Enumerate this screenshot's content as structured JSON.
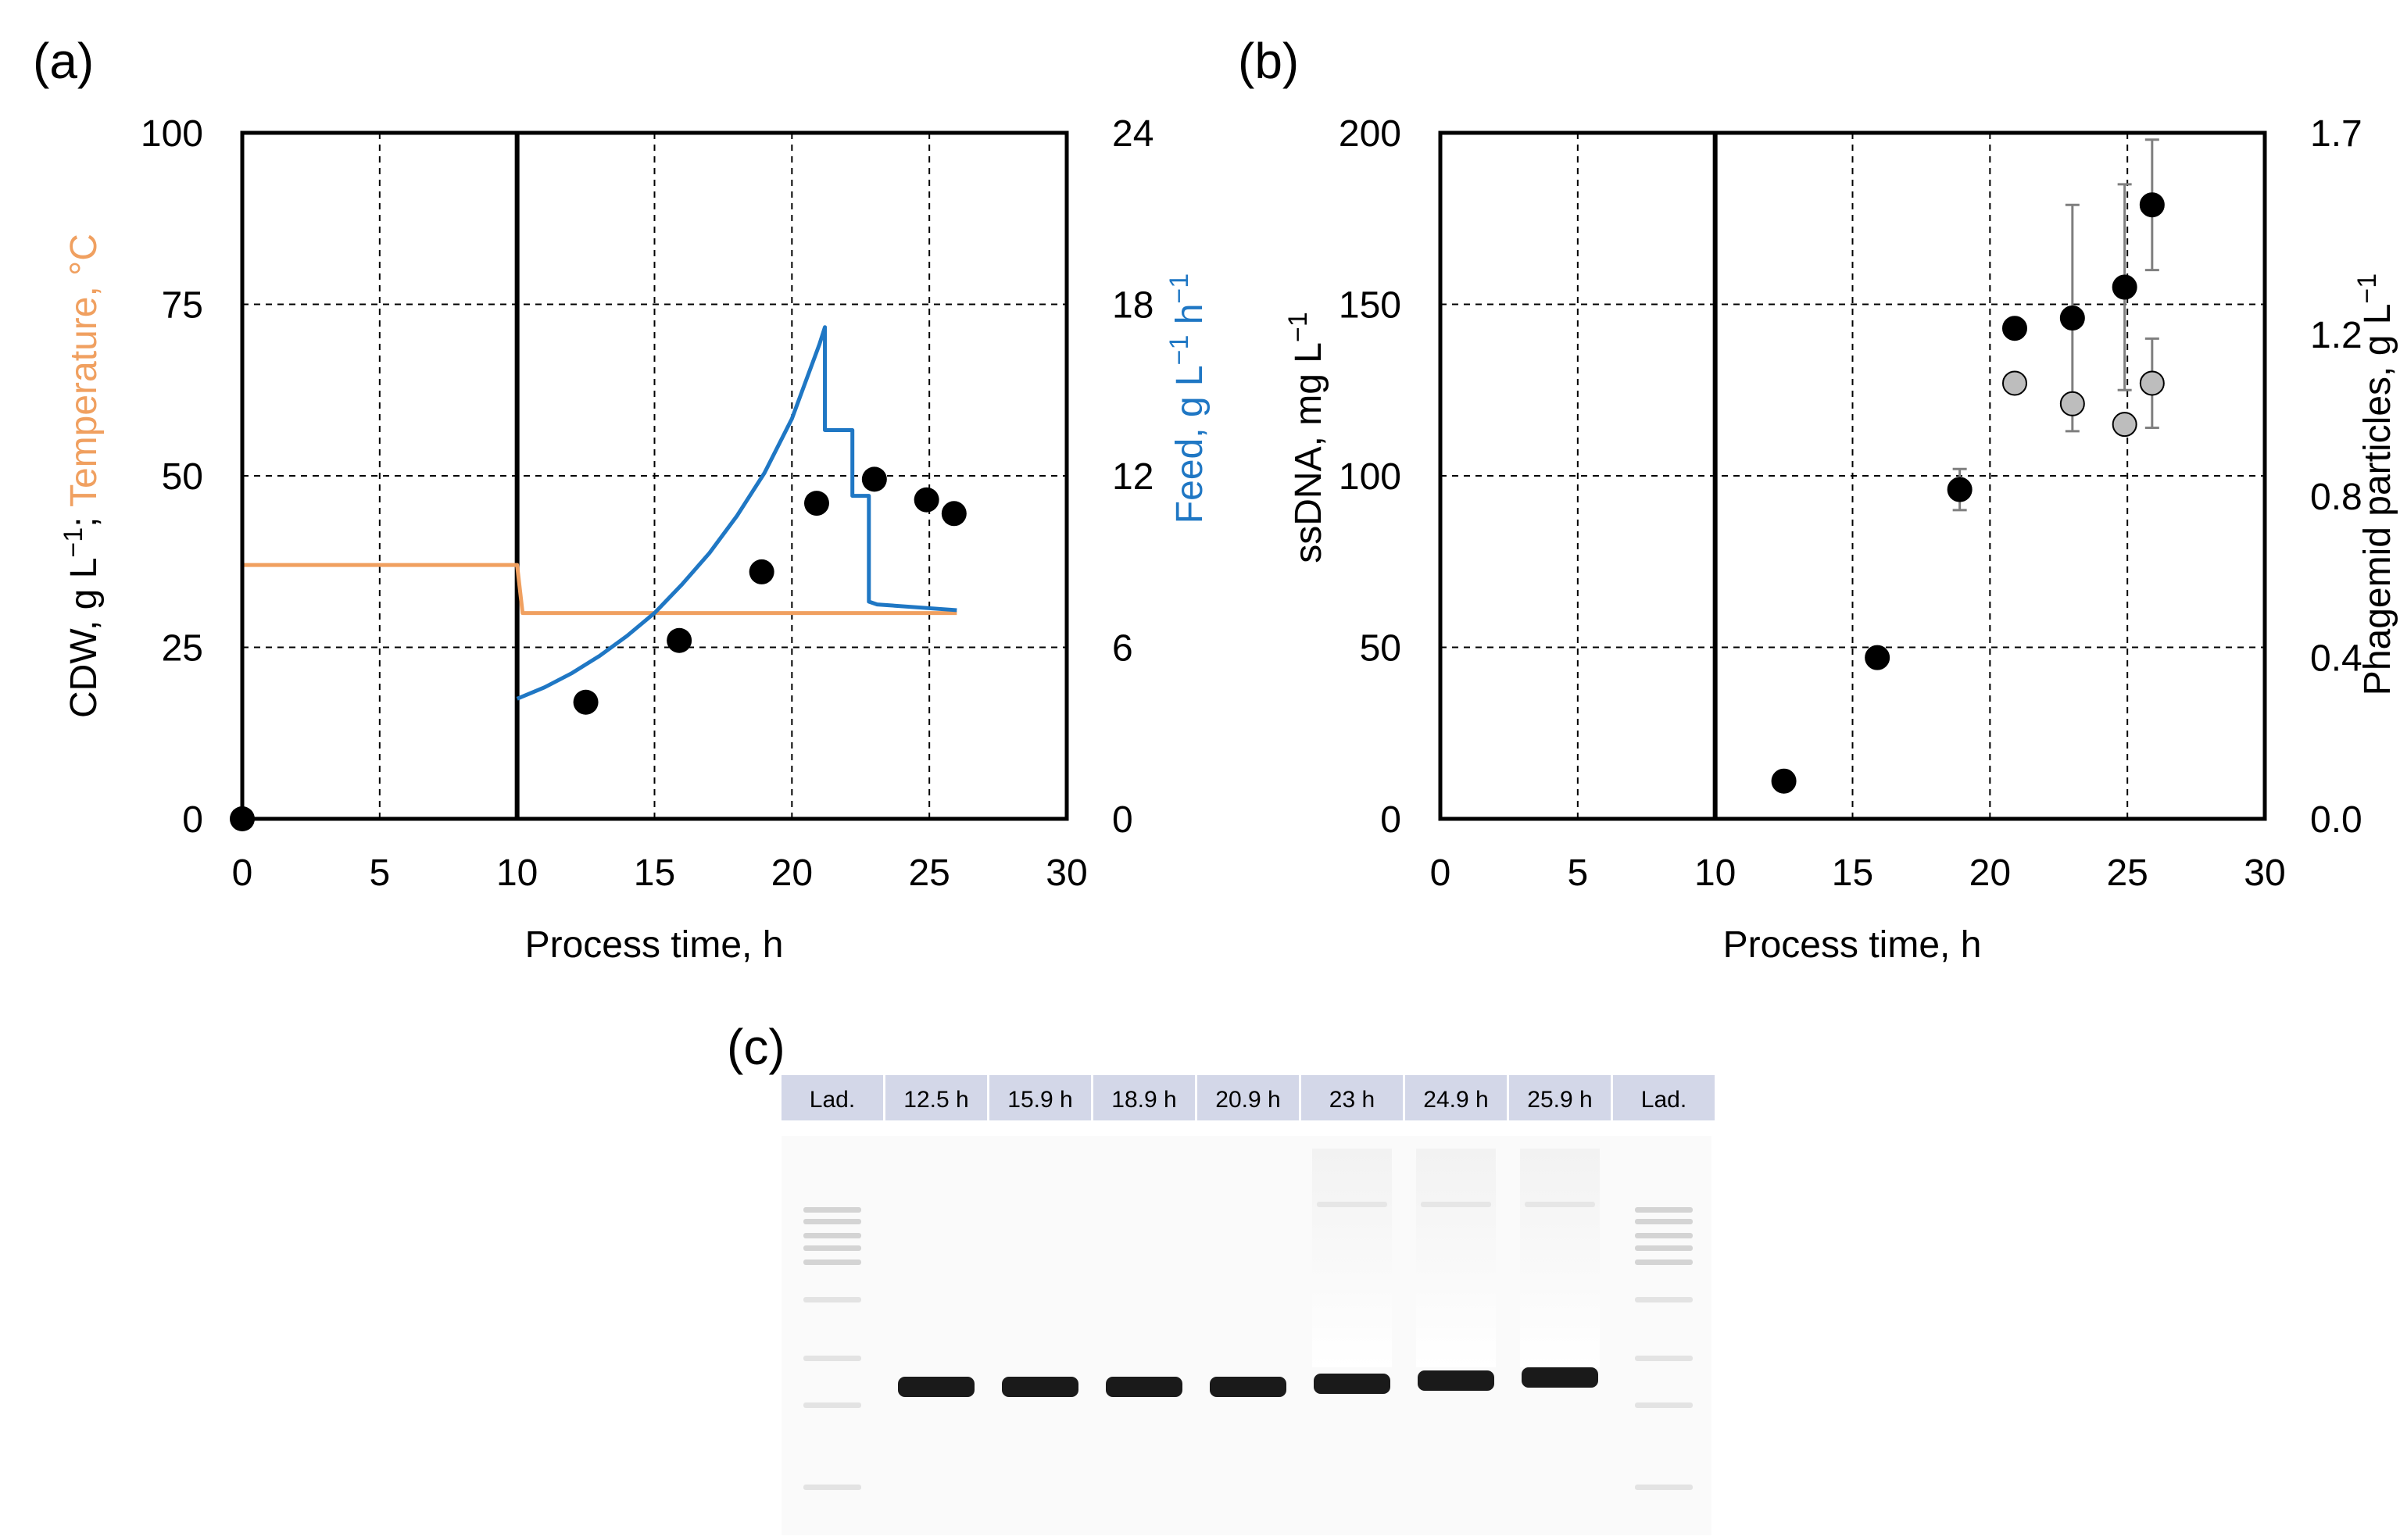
{
  "chart_data": [
    {
      "panel": "(a)",
      "type": "line",
      "xlabel": "Process time, h",
      "xlim": [
        0,
        30
      ],
      "xticks": [
        0,
        5,
        10,
        15,
        20,
        25,
        30
      ],
      "ylabel_left_parts": [
        "CDW, g L",
        "−1",
        "; ",
        "Temperature, °C"
      ],
      "ylim_left": [
        0,
        100
      ],
      "yticks_left": [
        0,
        25,
        50,
        75,
        100
      ],
      "ylabel_right_parts": [
        "Feed, g L",
        "−1",
        " h",
        "−1"
      ],
      "ylim_right": [
        0,
        24
      ],
      "yticks_right": [
        0,
        6,
        12,
        18,
        24
      ],
      "vertical_line_x": 10,
      "grid": true,
      "colors": {
        "temperature": "#F0A060",
        "feed": "#1F77C4",
        "cdw": "#000000"
      },
      "series": [
        {
          "name": "Temperature",
          "axis": "left",
          "style": "line",
          "x": [
            0,
            10,
            10.2,
            26
          ],
          "y": [
            37,
            37,
            30,
            30
          ]
        },
        {
          "name": "Feed",
          "axis": "right",
          "style": "line",
          "x": [
            10,
            11,
            12,
            13,
            14,
            15,
            16,
            17,
            18,
            19,
            20,
            21,
            21.2,
            21.2,
            22.2,
            22.2,
            22.8,
            22.8,
            23.1,
            26
          ],
          "y": [
            4.2,
            4.6,
            5.1,
            5.7,
            6.4,
            7.2,
            8.2,
            9.3,
            10.6,
            12.1,
            14.0,
            16.6,
            17.2,
            13.6,
            13.6,
            11.3,
            11.3,
            7.6,
            7.5,
            7.3
          ]
        },
        {
          "name": "CDW",
          "axis": "left",
          "style": "marker",
          "x": [
            0,
            12.5,
            15.9,
            18.9,
            20.9,
            23,
            24.9,
            25.9
          ],
          "y": [
            0,
            17,
            26,
            36,
            46,
            49.5,
            46.5,
            44.5
          ]
        }
      ]
    },
    {
      "panel": "(b)",
      "type": "scatter",
      "xlabel": "Process time, h",
      "xlim": [
        0,
        30
      ],
      "xticks": [
        0,
        5,
        10,
        15,
        20,
        25,
        30
      ],
      "ylabel_left_parts": [
        "ssDNA, mg L",
        "−1"
      ],
      "ylim_left": [
        0,
        200
      ],
      "yticks_left": [
        0,
        50,
        100,
        150,
        200
      ],
      "ylabel_right_parts": [
        "Phagemid particles, g L",
        "−1"
      ],
      "ylim_right": [
        0,
        1.7
      ],
      "yticks_right": [
        "0.0",
        "0.4",
        "0.8",
        "1.2",
        "1.7"
      ],
      "vertical_line_x": 10,
      "grid": true,
      "colors": {
        "ssdna": "#000000",
        "phagemid": "#BDBDBD",
        "errorbar": "#7F7F7F"
      },
      "series": [
        {
          "name": "ssDNA",
          "axis": "left",
          "color": "#000000",
          "x": [
            12.5,
            15.9,
            18.9,
            20.9,
            23,
            24.9,
            25.9
          ],
          "y": [
            11,
            47,
            96,
            143,
            146,
            155,
            179
          ],
          "err": [
            0,
            0,
            6,
            0,
            33,
            30,
            19
          ]
        },
        {
          "name": "Phagemid particles",
          "axis": "left",
          "color": "#BDBDBD",
          "x": [
            20.9,
            23,
            24.9,
            25.9
          ],
          "y": [
            127,
            121,
            115,
            127
          ],
          "err": [
            0,
            0,
            0,
            13
          ]
        }
      ]
    }
  ],
  "gel": {
    "panel": "(c)",
    "lanes": [
      "Lad.",
      "12.5 h",
      "15.9 h",
      "18.9 h",
      "20.9 h",
      "23 h",
      "24.9 h",
      "25.9 h",
      "Lad."
    ]
  }
}
